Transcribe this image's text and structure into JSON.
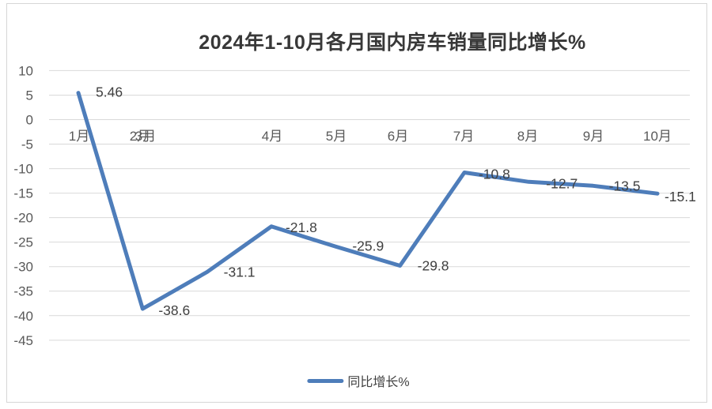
{
  "chart_data": {
    "type": "line",
    "title": "2024年1-10月各月国内房车销量同比增长%",
    "categories": [
      "1月",
      "2月",
      "3月",
      "4月",
      "5月",
      "6月",
      "7月",
      "8月",
      "9月",
      "10月"
    ],
    "series": [
      {
        "name": "同比增长%",
        "values": [
          5.46,
          -38.6,
          -31.1,
          -21.8,
          -25.9,
          -29.8,
          -10.8,
          -12.7,
          -13.5,
          -15.1
        ]
      }
    ],
    "data_labels": [
      "5.46",
      "-38.6",
      "-31.1",
      "-21.8",
      "-25.9",
      "-29.8",
      "-10.8",
      "-12.7",
      "-13.5",
      "-15.1"
    ],
    "xlabel": "",
    "ylabel": "",
    "y_axis": {
      "min": -45,
      "max": 10,
      "step": 5,
      "ticks": [
        10,
        5,
        0,
        -5,
        -10,
        -15,
        -20,
        -25,
        -30,
        -35,
        -40,
        -45
      ]
    },
    "grid": true,
    "legend": {
      "label": "同比增长%",
      "position": "bottom"
    },
    "line_color": "#4e7dba",
    "gridline_color": "#d9d9d9",
    "axis_label_color": "#595959",
    "data_label_color": "#404040",
    "layout_note": "3月 x-axis label is drawn overlapping the 2月 label; data points remain evenly spaced"
  }
}
